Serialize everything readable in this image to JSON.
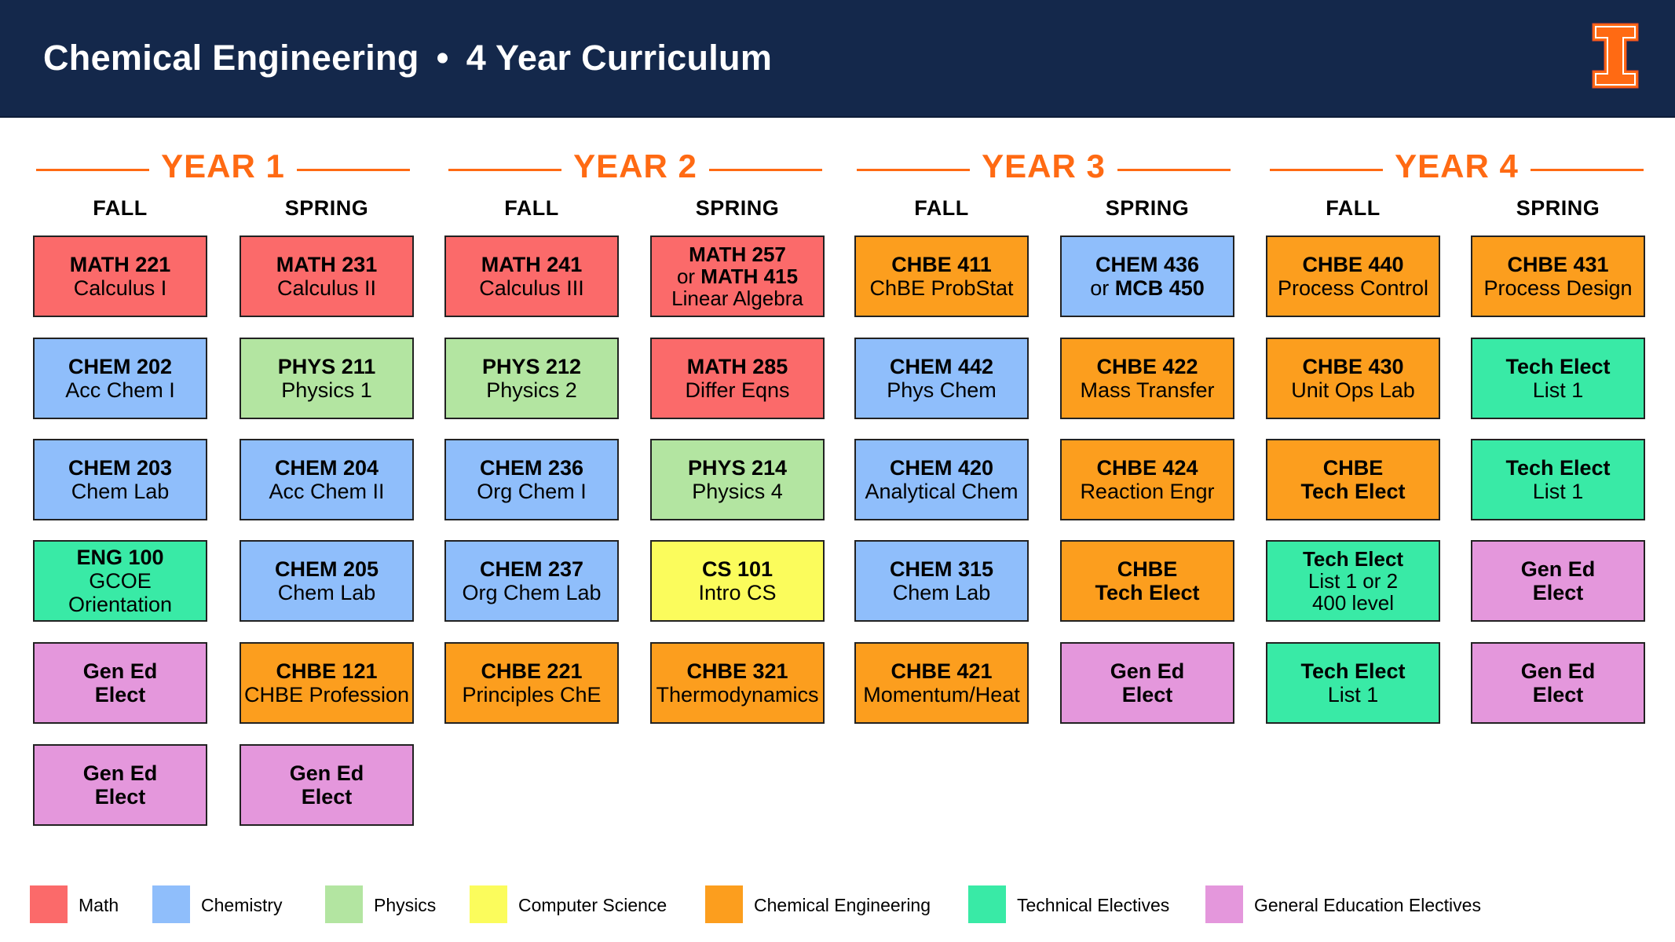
{
  "header": {
    "title_left": "Chemical Engineering",
    "separator": "•",
    "title_right": "4 Year Curriculum",
    "logo": "block-i-logo",
    "bg_color": "#14284b",
    "logo_color": "#ff6a13"
  },
  "accent_color": "#ff6a13",
  "category_colors": {
    "math": "#fb6a6a",
    "chem": "#8fbefb",
    "phys": "#b3e5a1",
    "cs": "#fbfc5c",
    "chbe": "#fc9e1e",
    "tech": "#39eaa6",
    "gen": "#e497dc"
  },
  "years": [
    {
      "label": "YEAR 1",
      "terms": [
        {
          "label": "FALL",
          "courses": [
            {
              "cat": "math",
              "lines": [
                {
                  "t": "MATH 221",
                  "b": true
                },
                {
                  "t": "Calculus I"
                }
              ]
            },
            {
              "cat": "chem",
              "lines": [
                {
                  "t": "CHEM 202",
                  "b": true
                },
                {
                  "t": "Acc Chem I"
                }
              ]
            },
            {
              "cat": "chem",
              "lines": [
                {
                  "t": "CHEM 203",
                  "b": true
                },
                {
                  "t": "Chem Lab"
                }
              ]
            },
            {
              "cat": "tech",
              "lines": [
                {
                  "t": "ENG 100",
                  "b": true
                },
                {
                  "t": "GCOE Orientation"
                }
              ]
            },
            {
              "cat": "gen",
              "lines": [
                {
                  "t": "Gen Ed",
                  "b": true
                },
                {
                  "t": "Elect",
                  "b": true
                }
              ]
            },
            {
              "cat": "gen",
              "lines": [
                {
                  "t": "Gen Ed",
                  "b": true
                },
                {
                  "t": "Elect",
                  "b": true
                }
              ]
            }
          ]
        },
        {
          "label": "SPRING",
          "courses": [
            {
              "cat": "math",
              "lines": [
                {
                  "t": "MATH 231",
                  "b": true
                },
                {
                  "t": "Calculus II"
                }
              ]
            },
            {
              "cat": "phys",
              "lines": [
                {
                  "t": "PHYS 211",
                  "b": true
                },
                {
                  "t": "Physics 1"
                }
              ]
            },
            {
              "cat": "chem",
              "lines": [
                {
                  "t": "CHEM 204",
                  "b": true
                },
                {
                  "t": "Acc Chem II"
                }
              ]
            },
            {
              "cat": "chem",
              "lines": [
                {
                  "t": "CHEM 205",
                  "b": true
                },
                {
                  "t": "Chem Lab"
                }
              ]
            },
            {
              "cat": "chbe",
              "lines": [
                {
                  "t": "CHBE 121",
                  "b": true
                },
                {
                  "t": "CHBE Profession"
                }
              ]
            },
            {
              "cat": "gen",
              "lines": [
                {
                  "t": "Gen Ed",
                  "b": true
                },
                {
                  "t": "Elect",
                  "b": true
                }
              ]
            }
          ]
        }
      ]
    },
    {
      "label": "YEAR 2",
      "terms": [
        {
          "label": "FALL",
          "courses": [
            {
              "cat": "math",
              "lines": [
                {
                  "t": "MATH 241",
                  "b": true
                },
                {
                  "t": "Calculus III"
                }
              ]
            },
            {
              "cat": "phys",
              "lines": [
                {
                  "t": "PHYS 212",
                  "b": true
                },
                {
                  "t": "Physics 2"
                }
              ]
            },
            {
              "cat": "chem",
              "lines": [
                {
                  "t": "CHEM 236",
                  "b": true
                },
                {
                  "t": "Org Chem I"
                }
              ]
            },
            {
              "cat": "chem",
              "lines": [
                {
                  "t": "CHEM 237",
                  "b": true
                },
                {
                  "t": "Org Chem Lab"
                }
              ]
            },
            {
              "cat": "chbe",
              "lines": [
                {
                  "t": "CHBE 221",
                  "b": true
                },
                {
                  "t": "Principles ChE"
                }
              ]
            }
          ]
        },
        {
          "label": "SPRING",
          "courses": [
            {
              "cat": "math",
              "lines": [
                {
                  "t": "MATH 257",
                  "b": true
                },
                {
                  "t": "or ",
                  "b2": "MATH 415"
                },
                {
                  "t": "Linear Algebra"
                }
              ]
            },
            {
              "cat": "math",
              "lines": [
                {
                  "t": "MATH 285",
                  "b": true
                },
                {
                  "t": "Differ Eqns"
                }
              ]
            },
            {
              "cat": "phys",
              "lines": [
                {
                  "t": "PHYS 214",
                  "b": true
                },
                {
                  "t": "Physics 4"
                }
              ]
            },
            {
              "cat": "cs",
              "lines": [
                {
                  "t": "CS 101",
                  "b": true
                },
                {
                  "t": "Intro CS"
                }
              ]
            },
            {
              "cat": "chbe",
              "lines": [
                {
                  "t": "CHBE 321",
                  "b": true
                },
                {
                  "t": "Thermodynamics"
                }
              ]
            }
          ]
        }
      ]
    },
    {
      "label": "YEAR 3",
      "terms": [
        {
          "label": "FALL",
          "courses": [
            {
              "cat": "chbe",
              "lines": [
                {
                  "t": "CHBE 411",
                  "b": true
                },
                {
                  "t": "ChBE ProbStat"
                }
              ]
            },
            {
              "cat": "chem",
              "lines": [
                {
                  "t": "CHEM 442",
                  "b": true
                },
                {
                  "t": "Phys Chem"
                }
              ]
            },
            {
              "cat": "chem",
              "lines": [
                {
                  "t": "CHEM 420",
                  "b": true
                },
                {
                  "t": "Analytical Chem"
                }
              ]
            },
            {
              "cat": "chem",
              "lines": [
                {
                  "t": "CHEM 315",
                  "b": true
                },
                {
                  "t": "Chem Lab"
                }
              ]
            },
            {
              "cat": "chbe",
              "lines": [
                {
                  "t": "CHBE 421",
                  "b": true
                },
                {
                  "t": "Momentum/Heat"
                }
              ]
            }
          ]
        },
        {
          "label": "SPRING",
          "courses": [
            {
              "cat": "chem",
              "lines": [
                {
                  "t": "CHEM 436",
                  "b": true
                },
                {
                  "t": "or ",
                  "b2": "MCB 450"
                }
              ]
            },
            {
              "cat": "chbe",
              "lines": [
                {
                  "t": "CHBE 422",
                  "b": true
                },
                {
                  "t": "Mass Transfer"
                }
              ]
            },
            {
              "cat": "chbe",
              "lines": [
                {
                  "t": "CHBE 424",
                  "b": true
                },
                {
                  "t": "Reaction Engr"
                }
              ]
            },
            {
              "cat": "chbe",
              "lines": [
                {
                  "t": "CHBE",
                  "b": true
                },
                {
                  "t": "Tech Elect",
                  "b": true
                }
              ]
            },
            {
              "cat": "gen",
              "lines": [
                {
                  "t": "Gen Ed",
                  "b": true
                },
                {
                  "t": "Elect",
                  "b": true
                }
              ]
            }
          ]
        }
      ]
    },
    {
      "label": "YEAR 4",
      "terms": [
        {
          "label": "FALL",
          "courses": [
            {
              "cat": "chbe",
              "lines": [
                {
                  "t": "CHBE 440",
                  "b": true
                },
                {
                  "t": "Process Control"
                }
              ]
            },
            {
              "cat": "chbe",
              "lines": [
                {
                  "t": "CHBE 430",
                  "b": true
                },
                {
                  "t": "Unit Ops Lab"
                }
              ]
            },
            {
              "cat": "chbe",
              "lines": [
                {
                  "t": "CHBE",
                  "b": true
                },
                {
                  "t": "Tech Elect",
                  "b": true
                }
              ]
            },
            {
              "cat": "tech",
              "lines": [
                {
                  "t": "Tech Elect",
                  "b": true
                },
                {
                  "t": "List 1 or 2"
                },
                {
                  "t": "400 level"
                }
              ]
            },
            {
              "cat": "tech",
              "lines": [
                {
                  "t": "Tech Elect",
                  "b": true
                },
                {
                  "t": "List 1"
                }
              ]
            }
          ]
        },
        {
          "label": "SPRING",
          "courses": [
            {
              "cat": "chbe",
              "lines": [
                {
                  "t": "CHBE 431",
                  "b": true
                },
                {
                  "t": "Process Design"
                }
              ]
            },
            {
              "cat": "tech",
              "lines": [
                {
                  "t": "Tech Elect",
                  "b": true
                },
                {
                  "t": "List 1"
                }
              ]
            },
            {
              "cat": "tech",
              "lines": [
                {
                  "t": "Tech Elect",
                  "b": true
                },
                {
                  "t": "List 1"
                }
              ]
            },
            {
              "cat": "gen",
              "lines": [
                {
                  "t": "Gen Ed",
                  "b": true
                },
                {
                  "t": "Elect",
                  "b": true
                }
              ]
            },
            {
              "cat": "gen",
              "lines": [
                {
                  "t": "Gen Ed",
                  "b": true
                },
                {
                  "t": "Elect",
                  "b": true
                }
              ]
            }
          ]
        }
      ]
    }
  ],
  "legend": [
    {
      "cat": "math",
      "label": "Math"
    },
    {
      "cat": "chem",
      "label": "Chemistry"
    },
    {
      "cat": "phys",
      "label": "Physics"
    },
    {
      "cat": "cs",
      "label": "Computer Science"
    },
    {
      "cat": "chbe",
      "label": "Chemical Engineering"
    },
    {
      "cat": "tech",
      "label": "Technical Electives"
    },
    {
      "cat": "gen",
      "label": "General Education Electives"
    }
  ]
}
